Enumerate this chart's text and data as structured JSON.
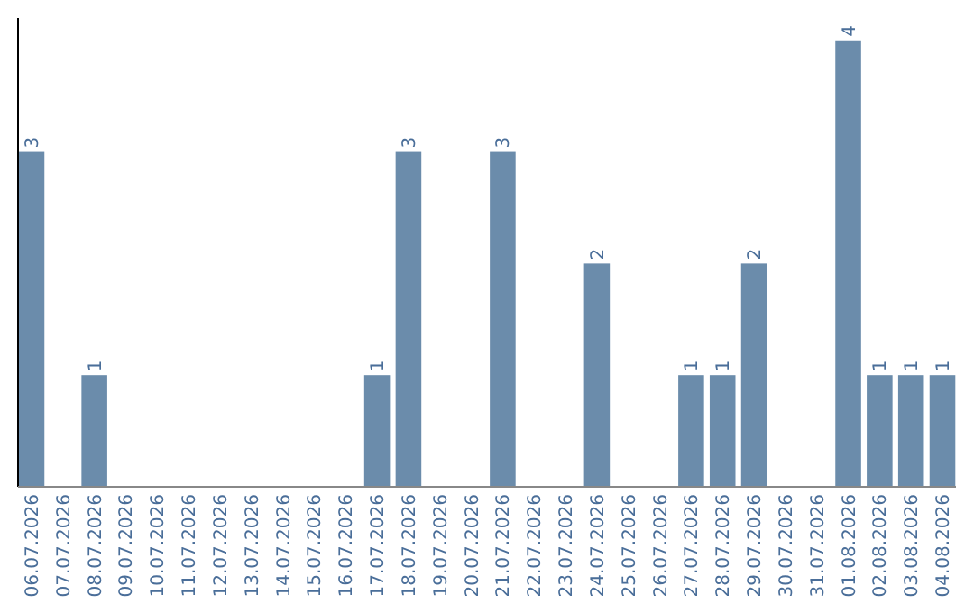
{
  "chart_data": {
    "type": "bar",
    "categories": [
      "06.07.2026",
      "07.07.2026",
      "08.07.2026",
      "09.07.2026",
      "10.07.2026",
      "11.07.2026",
      "12.07.2026",
      "13.07.2026",
      "14.07.2026",
      "15.07.2026",
      "16.07.2026",
      "17.07.2026",
      "18.07.2026",
      "19.07.2026",
      "20.07.2026",
      "21.07.2026",
      "22.07.2026",
      "23.07.2026",
      "24.07.2026",
      "25.07.2026",
      "26.07.2026",
      "27.07.2026",
      "28.07.2026",
      "29.07.2026",
      "30.07.2026",
      "31.07.2026",
      "01.08.2026",
      "02.08.2026",
      "03.08.2026",
      "04.08.2026"
    ],
    "values": [
      3,
      0,
      1,
      0,
      0,
      0,
      0,
      0,
      0,
      0,
      0,
      1,
      3,
      0,
      0,
      3,
      0,
      0,
      2,
      0,
      0,
      1,
      1,
      2,
      0,
      0,
      4,
      1,
      1,
      1
    ],
    "value_labels": [
      "3",
      null,
      "1",
      null,
      null,
      null,
      null,
      null,
      null,
      null,
      null,
      "1",
      "3",
      null,
      null,
      "3",
      null,
      null,
      "2",
      null,
      null,
      "1",
      "1",
      "2",
      null,
      null,
      "4",
      "1",
      "1",
      "1"
    ],
    "color": "#6b8cab",
    "ylim": [
      0,
      4.2
    ],
    "tick_labels": "x"
  }
}
